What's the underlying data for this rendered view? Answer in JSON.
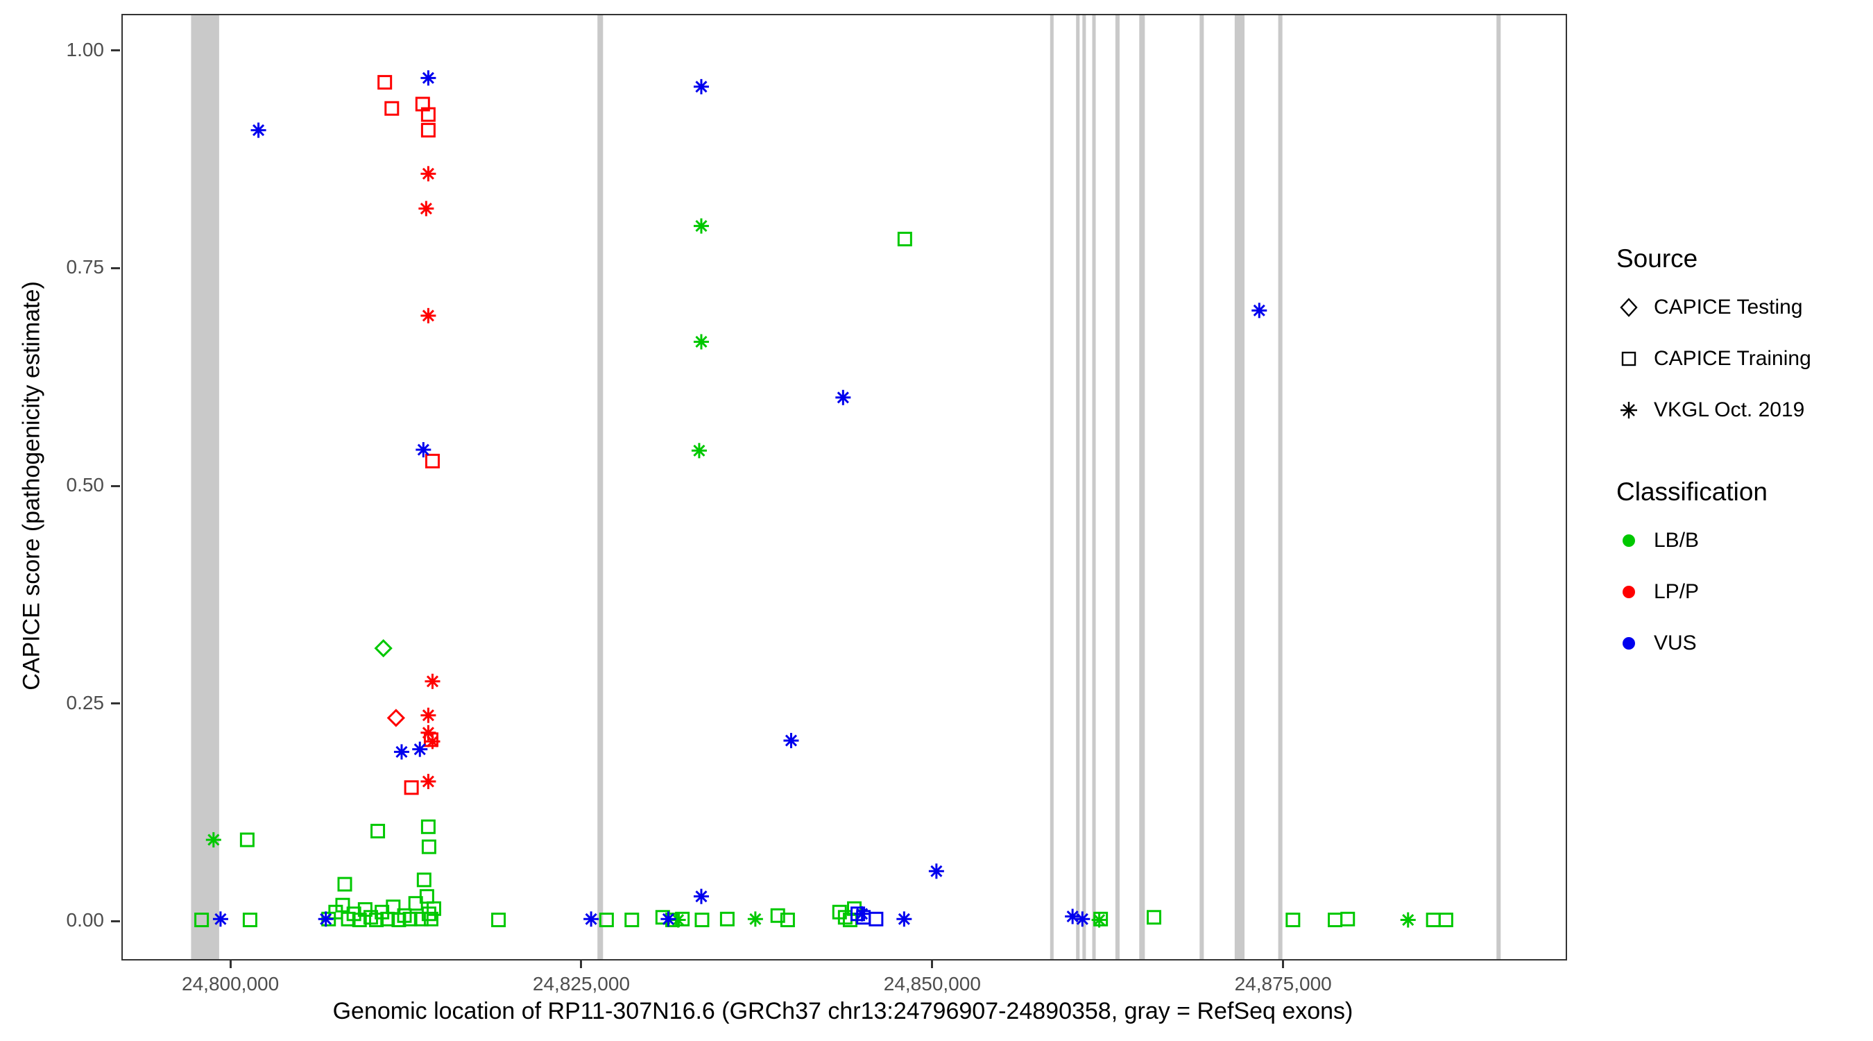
{
  "figure_title": "",
  "axes": {
    "x": {
      "title": "Genomic location of RP11-307N16.6 (GRCh37 chr13:24796907-24890358, gray = RefSeq exons)",
      "ticks": [
        {
          "value": 24800000,
          "label": "24,800,000"
        },
        {
          "value": 24825000,
          "label": "24,825,000"
        },
        {
          "value": 24850000,
          "label": "24,850,000"
        },
        {
          "value": 24875000,
          "label": "24,875,000"
        }
      ]
    },
    "y": {
      "title": "CAPICE score (pathogenicity estimate)",
      "ticks": [
        {
          "value": 0.0,
          "label": "0.00"
        },
        {
          "value": 0.25,
          "label": "0.25"
        },
        {
          "value": 0.5,
          "label": "0.50"
        },
        {
          "value": 0.75,
          "label": "0.75"
        },
        {
          "value": 1.0,
          "label": "1.00"
        }
      ]
    }
  },
  "legend": {
    "source": {
      "title": "Source",
      "items": [
        {
          "label": "CAPICE Testing",
          "marker": "diamond"
        },
        {
          "label": "CAPICE Training",
          "marker": "square"
        },
        {
          "label": "VKGL Oct. 2019",
          "marker": "asterisk"
        }
      ]
    },
    "classification": {
      "title": "Classification",
      "items": [
        {
          "label": "LB/B",
          "color": "#00C800"
        },
        {
          "label": "LP/P",
          "color": "#FF0000"
        },
        {
          "label": "VUS",
          "color": "#0000EE"
        }
      ]
    }
  },
  "colors": {
    "lbb": "#00C800",
    "lpp": "#FF0000",
    "vus": "#0000EE",
    "exon": "#C9C9C9",
    "axis": "#333333"
  },
  "chart_data": {
    "type": "scatter",
    "title": "",
    "xlabel": "Genomic location of RP11-307N16.6 (GRCh37 chr13:24796907-24890358, gray = RefSeq exons)",
    "ylabel": "CAPICE score (pathogenicity estimate)",
    "xlim": [
      24792235,
      24895031
    ],
    "ylim": [
      -0.042,
      1.042
    ],
    "grid": false,
    "legend_position": "right",
    "exon_color": "#C9C9C9",
    "exons": [
      {
        "start": 24797100,
        "end": 24799100
      },
      {
        "start": 24826050,
        "end": 24826450
      },
      {
        "start": 24858300,
        "end": 24858550
      },
      {
        "start": 24860150,
        "end": 24860400
      },
      {
        "start": 24860600,
        "end": 24860850
      },
      {
        "start": 24861300,
        "end": 24861550
      },
      {
        "start": 24862950,
        "end": 24863250
      },
      {
        "start": 24864650,
        "end": 24865050
      },
      {
        "start": 24868950,
        "end": 24869250
      },
      {
        "start": 24871450,
        "end": 24872150
      },
      {
        "start": 24874550,
        "end": 24874850
      },
      {
        "start": 24890100,
        "end": 24890400
      }
    ],
    "series": [
      {
        "name": "CAPICE Testing / LB/B",
        "source": "CAPICE Testing",
        "classification": "LB/B",
        "marker": "diamond",
        "color": "#00C800",
        "points": [
          [
            24810800,
            0.315
          ]
        ]
      },
      {
        "name": "CAPICE Testing / LP/P",
        "source": "CAPICE Testing",
        "classification": "LP/P",
        "marker": "diamond",
        "color": "#FF0000",
        "points": [
          [
            24811700,
            0.235
          ]
        ]
      },
      {
        "name": "CAPICE Training / LB/B",
        "source": "CAPICE Training",
        "classification": "LB/B",
        "marker": "square",
        "color": "#00C800",
        "points": [
          [
            24847950,
            0.785
          ],
          [
            24801100,
            0.095
          ],
          [
            24810400,
            0.105
          ],
          [
            24814000,
            0.11
          ],
          [
            24814050,
            0.087
          ],
          [
            24813700,
            0.049
          ],
          [
            24808050,
            0.044
          ],
          [
            24797850,
            0.003
          ],
          [
            24801300,
            0.003
          ],
          [
            24806900,
            0.004
          ],
          [
            24807400,
            0.012
          ],
          [
            24807900,
            0.02
          ],
          [
            24808300,
            0.004
          ],
          [
            24808700,
            0.01
          ],
          [
            24809100,
            0.003
          ],
          [
            24809500,
            0.015
          ],
          [
            24809900,
            0.006
          ],
          [
            24810300,
            0.003
          ],
          [
            24810700,
            0.012
          ],
          [
            24811100,
            0.004
          ],
          [
            24811500,
            0.018
          ],
          [
            24811900,
            0.003
          ],
          [
            24812300,
            0.008
          ],
          [
            24812700,
            0.004
          ],
          [
            24813100,
            0.022
          ],
          [
            24813500,
            0.004
          ],
          [
            24813900,
            0.03
          ],
          [
            24814050,
            0.01
          ],
          [
            24814200,
            0.004
          ],
          [
            24814400,
            0.016
          ],
          [
            24819000,
            0.003
          ],
          [
            24826700,
            0.003
          ],
          [
            24828500,
            0.003
          ],
          [
            24830700,
            0.006
          ],
          [
            24831400,
            0.003
          ],
          [
            24832100,
            0.004
          ],
          [
            24833500,
            0.003
          ],
          [
            24835300,
            0.004
          ],
          [
            24838900,
            0.008
          ],
          [
            24839600,
            0.003
          ],
          [
            24843300,
            0.012
          ],
          [
            24843700,
            0.006
          ],
          [
            24844050,
            0.003
          ],
          [
            24844350,
            0.016
          ],
          [
            24861900,
            0.004
          ],
          [
            24865700,
            0.006
          ],
          [
            24875600,
            0.003
          ],
          [
            24878600,
            0.003
          ],
          [
            24879500,
            0.004
          ],
          [
            24885600,
            0.003
          ],
          [
            24886500,
            0.003
          ]
        ]
      },
      {
        "name": "CAPICE Training / LP/P",
        "source": "CAPICE Training",
        "classification": "LP/P",
        "marker": "square",
        "color": "#FF0000",
        "points": [
          [
            24810900,
            0.965
          ],
          [
            24811400,
            0.935
          ],
          [
            24813600,
            0.94
          ],
          [
            24814000,
            0.928
          ],
          [
            24814000,
            0.91
          ],
          [
            24814300,
            0.53
          ],
          [
            24814200,
            0.21
          ],
          [
            24812800,
            0.155
          ]
        ]
      },
      {
        "name": "CAPICE Training / VUS",
        "source": "CAPICE Training",
        "classification": "VUS",
        "marker": "square",
        "color": "#0000EE",
        "points": [
          [
            24845000,
            0.006
          ],
          [
            24845900,
            0.004
          ],
          [
            24844600,
            0.01
          ]
        ]
      },
      {
        "name": "VKGL Oct. 2019 / LB/B",
        "source": "VKGL Oct. 2019",
        "classification": "LB/B",
        "marker": "asterisk",
        "color": "#00C800",
        "points": [
          [
            24798700,
            0.095
          ],
          [
            24833450,
            0.8
          ],
          [
            24833450,
            0.667
          ],
          [
            24833300,
            0.542
          ],
          [
            24831800,
            0.003
          ],
          [
            24837300,
            0.004
          ],
          [
            24861800,
            0.003
          ],
          [
            24883800,
            0.003
          ]
        ]
      },
      {
        "name": "VKGL Oct. 2019 / LP/P",
        "source": "VKGL Oct. 2019",
        "classification": "LP/P",
        "marker": "asterisk",
        "color": "#FF0000",
        "points": [
          [
            24814000,
            0.86
          ],
          [
            24813850,
            0.82
          ],
          [
            24814000,
            0.697
          ],
          [
            24814300,
            0.277
          ],
          [
            24814000,
            0.238
          ],
          [
            24814000,
            0.218
          ],
          [
            24814300,
            0.208
          ],
          [
            24814000,
            0.162
          ]
        ]
      },
      {
        "name": "VKGL Oct. 2019 / VUS",
        "source": "VKGL Oct. 2019",
        "classification": "VUS",
        "marker": "asterisk",
        "color": "#0000EE",
        "points": [
          [
            24801900,
            0.91
          ],
          [
            24814000,
            0.97
          ],
          [
            24813650,
            0.543
          ],
          [
            24812100,
            0.196
          ],
          [
            24813400,
            0.199
          ],
          [
            24833450,
            0.96
          ],
          [
            24833450,
            0.03
          ],
          [
            24839850,
            0.209
          ],
          [
            24843550,
            0.603
          ],
          [
            24850200,
            0.059
          ],
          [
            24873200,
            0.703
          ],
          [
            24799200,
            0.004
          ],
          [
            24806700,
            0.004
          ],
          [
            24825600,
            0.004
          ],
          [
            24831100,
            0.004
          ],
          [
            24844900,
            0.01
          ],
          [
            24847900,
            0.004
          ],
          [
            24859900,
            0.007
          ],
          [
            24860600,
            0.004
          ]
        ]
      }
    ]
  }
}
